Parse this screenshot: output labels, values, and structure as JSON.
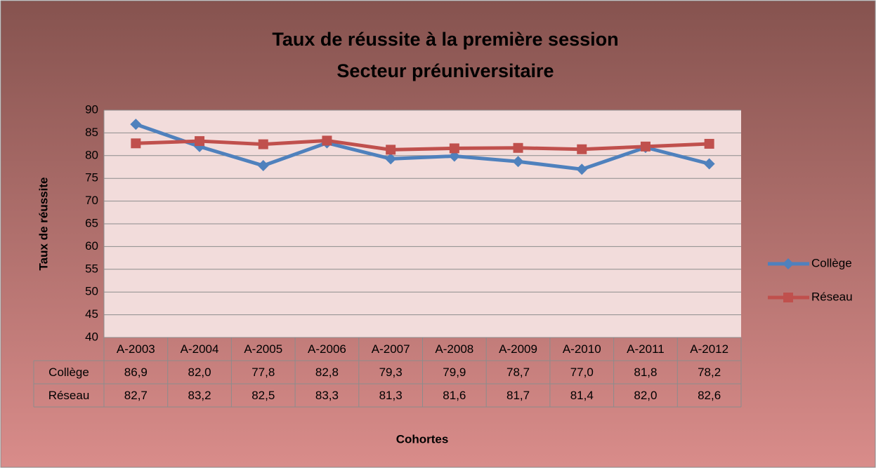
{
  "chart_data": {
    "type": "line",
    "title": [
      "Taux de réussite à la première session",
      "Secteur préuniversitaire"
    ],
    "x_label": "Cohortes",
    "y_label": "Taux de réussite",
    "categories": [
      "A-2003",
      "A-2004",
      "A-2005",
      "A-2006",
      "A-2007",
      "A-2008",
      "A-2009",
      "A-2010",
      "A-2011",
      "A-2012"
    ],
    "series": [
      {
        "name": "Collège",
        "color": "#4f81bd",
        "marker": "diamond",
        "values": [
          86.9,
          82.0,
          77.8,
          82.8,
          79.3,
          79.9,
          78.7,
          77.0,
          81.8,
          78.2
        ],
        "value_labels": [
          "86,9",
          "82,0",
          "77,8",
          "82,8",
          "79,3",
          "79,9",
          "78,7",
          "77,0",
          "81,8",
          "78,2"
        ]
      },
      {
        "name": "Réseau",
        "color": "#c0504d",
        "marker": "square",
        "values": [
          82.7,
          83.2,
          82.5,
          83.3,
          81.3,
          81.6,
          81.7,
          81.4,
          82.0,
          82.6
        ],
        "value_labels": [
          "82,7",
          "83,2",
          "82,5",
          "83,3",
          "81,3",
          "81,6",
          "81,7",
          "81,4",
          "82,0",
          "82,6"
        ]
      }
    ],
    "ylim": [
      40,
      90
    ],
    "yticks": [
      40,
      45,
      50,
      55,
      60,
      65,
      70,
      75,
      80,
      85,
      90
    ],
    "grid": true,
    "legend": "right",
    "data_table": true
  }
}
